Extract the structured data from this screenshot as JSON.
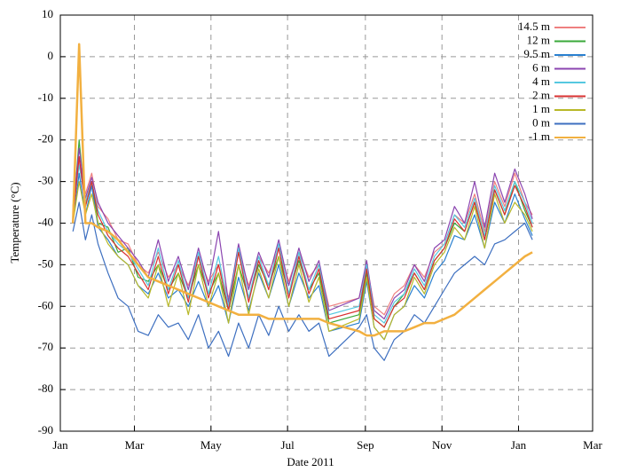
{
  "chart_data": {
    "type": "line",
    "x_label": "Date 2011",
    "y_label": "Temperature (°C)",
    "x": [
      10,
      15,
      20,
      25,
      30,
      38,
      46,
      54,
      62,
      70,
      78,
      86,
      94,
      102,
      110,
      118,
      126,
      134,
      142,
      150,
      158,
      166,
      174,
      182,
      190,
      198,
      206,
      214,
      238,
      244,
      250,
      258,
      266,
      274,
      282,
      290,
      298,
      306,
      314,
      322,
      330,
      338,
      346,
      354,
      362,
      370,
      376
    ],
    "xlim": [
      0,
      424
    ],
    "xticks": [
      {
        "value": 0,
        "label": "Jan"
      },
      {
        "value": 59,
        "label": "Mar"
      },
      {
        "value": 120,
        "label": "May"
      },
      {
        "value": 181,
        "label": "Jul"
      },
      {
        "value": 243,
        "label": "Sep"
      },
      {
        "value": 304,
        "label": "Nov"
      },
      {
        "value": 365,
        "label": "Jan"
      },
      {
        "value": 424,
        "label": "Mar"
      }
    ],
    "ylim": [
      -90,
      10
    ],
    "yticks": [
      -90,
      -80,
      -70,
      -60,
      -50,
      -40,
      -30,
      -20,
      -10,
      0,
      10
    ],
    "grid": true,
    "legend": "top-right",
    "series": [
      {
        "name": "14.5 m",
        "color": "#ee8080",
        "values": [
          -36,
          -25,
          -33,
          -28,
          -36,
          -39,
          -44,
          -45,
          -50,
          -52,
          -47,
          -53,
          -50,
          -55,
          -48,
          -54,
          -50,
          -58,
          -47,
          -55,
          -48,
          -52,
          -46,
          -54,
          -47,
          -53,
          -50,
          -60,
          -58,
          -50,
          -60,
          -62,
          -57,
          -55,
          -50,
          -53,
          -47,
          -45,
          -38,
          -40,
          -33,
          -42,
          -30,
          -36,
          -28,
          -35,
          -38
        ]
      },
      {
        "name": "12 m",
        "color": "#3aa83a",
        "values": [
          -39,
          -20,
          -36,
          -30,
          -40,
          -41,
          -47,
          -46,
          -53,
          -54,
          -50,
          -56,
          -52,
          -58,
          -50,
          -57,
          -52,
          -61,
          -50,
          -58,
          -50,
          -55,
          -48,
          -57,
          -49,
          -56,
          -52,
          -64,
          -62,
          -52,
          -63,
          -65,
          -60,
          -57,
          -52,
          -56,
          -49,
          -46,
          -40,
          -42,
          -35,
          -44,
          -32,
          -38,
          -30,
          -37,
          -41
        ]
      },
      {
        "name": "9.5 m",
        "color": "#2a80d0",
        "values": [
          -40,
          -28,
          -38,
          -31,
          -41,
          -44,
          -48,
          -50,
          -55,
          -57,
          -52,
          -58,
          -56,
          -60,
          -54,
          -60,
          -55,
          -64,
          -53,
          -61,
          -52,
          -58,
          -50,
          -60,
          -52,
          -58,
          -55,
          -66,
          -64,
          -54,
          -65,
          -68,
          -62,
          -60,
          -55,
          -58,
          -52,
          -49,
          -43,
          -44,
          -38,
          -46,
          -35,
          -40,
          -33,
          -39,
          -43
        ]
      },
      {
        "name": "6 m",
        "color": "#8b45b0",
        "values": [
          -37,
          -22,
          -34,
          -29,
          -35,
          -40,
          -43,
          -46,
          -49,
          -53,
          -44,
          -54,
          -48,
          -56,
          -46,
          -55,
          -42,
          -59,
          -45,
          -56,
          -47,
          -53,
          -44,
          -55,
          -46,
          -54,
          -49,
          -61,
          -58,
          -49,
          -61,
          -63,
          -58,
          -56,
          -50,
          -54,
          -46,
          -44,
          -36,
          -40,
          -30,
          -41,
          -28,
          -35,
          -27,
          -33,
          -39
        ]
      },
      {
        "name": "4 m",
        "color": "#55c8e0",
        "values": [
          -38,
          -26,
          -35,
          -30,
          -37,
          -42,
          -45,
          -47,
          -51,
          -55,
          -46,
          -56,
          -49,
          -58,
          -47,
          -57,
          -48,
          -60,
          -46,
          -58,
          -48,
          -55,
          -45,
          -57,
          -47,
          -56,
          -50,
          -62,
          -60,
          -50,
          -62,
          -64,
          -59,
          -57,
          -51,
          -55,
          -48,
          -45,
          -38,
          -41,
          -34,
          -43,
          -31,
          -37,
          -30,
          -35,
          -40
        ]
      },
      {
        "name": "2 m",
        "color": "#d83030",
        "values": [
          -39,
          -24,
          -36,
          -30,
          -38,
          -43,
          -46,
          -48,
          -52,
          -56,
          -48,
          -57,
          -50,
          -59,
          -48,
          -58,
          -50,
          -61,
          -47,
          -59,
          -49,
          -56,
          -46,
          -58,
          -48,
          -57,
          -51,
          -63,
          -61,
          -51,
          -63,
          -65,
          -60,
          -58,
          -52,
          -56,
          -49,
          -46,
          -39,
          -42,
          -35,
          -44,
          -32,
          -38,
          -31,
          -36,
          -41
        ]
      },
      {
        "name": "1 m",
        "color": "#b8b828",
        "values": [
          -40,
          -30,
          -38,
          -33,
          -40,
          -45,
          -48,
          -50,
          -55,
          -58,
          -50,
          -60,
          -52,
          -62,
          -50,
          -60,
          -52,
          -64,
          -50,
          -62,
          -51,
          -58,
          -48,
          -60,
          -50,
          -59,
          -53,
          -66,
          -63,
          -53,
          -65,
          -68,
          -62,
          -60,
          -53,
          -57,
          -50,
          -47,
          -41,
          -44,
          -36,
          -46,
          -33,
          -40,
          -35,
          -38,
          -42
        ]
      },
      {
        "name": "0 m",
        "color": "#3d6fc0",
        "values": [
          -42,
          -35,
          -44,
          -38,
          -45,
          -52,
          -58,
          -60,
          -66,
          -67,
          -62,
          -65,
          -64,
          -68,
          -62,
          -70,
          -66,
          -72,
          -64,
          -70,
          -62,
          -67,
          -60,
          -66,
          -62,
          -66,
          -64,
          -72,
          -65,
          -62,
          -70,
          -73,
          -68,
          -66,
          -62,
          -64,
          -60,
          -56,
          -52,
          -50,
          -48,
          -50,
          -45,
          -44,
          -42,
          -40,
          -44
        ]
      },
      {
        "name": "-1 m",
        "color": "#f2b040",
        "values": [
          -40,
          3,
          -40,
          -40,
          -41,
          -42,
          -44,
          -47,
          -50,
          -53,
          -54,
          -55,
          -56,
          -57,
          -58,
          -59,
          -60,
          -61,
          -62,
          -62,
          -62,
          -63,
          -63,
          -63,
          -63,
          -63,
          -63,
          -64,
          -66,
          -67,
          -67,
          -66,
          -66,
          -66,
          -65,
          -64,
          -64,
          -63,
          -62,
          -60,
          -58,
          -56,
          -54,
          -52,
          -50,
          -48,
          -47
        ]
      }
    ]
  }
}
